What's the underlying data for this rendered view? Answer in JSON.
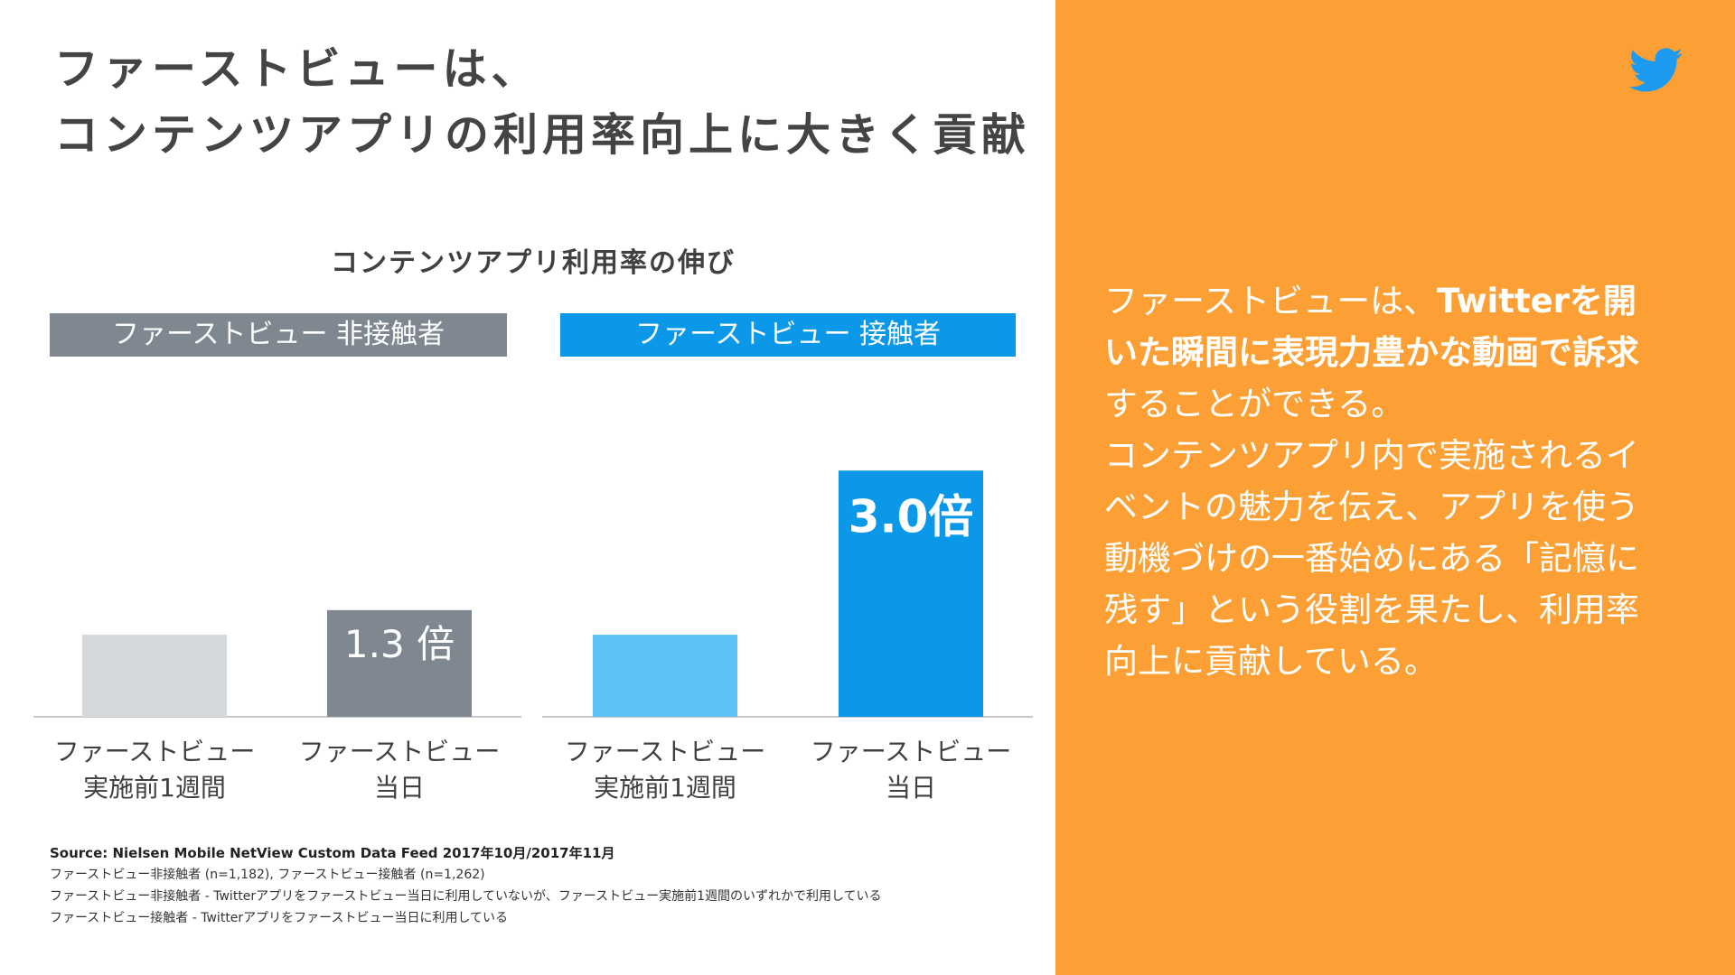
{
  "title": {
    "line1": "ファーストビューは、",
    "line2": "コンテンツアプリの利用率向上に大きく貢献"
  },
  "colors": {
    "panel_bg": "#fca035",
    "twitter_blue": "#1d9bf0",
    "gray_dark": "#7f8891",
    "gray_light": "#d3d8dc",
    "blue_dark": "#0b98e8",
    "blue_light": "#5cc3f4"
  },
  "chart_data": {
    "type": "bar",
    "title": "コンテンツアプリ利用率の伸び",
    "groups": [
      "ファーストビュー 非接触者",
      "ファーストビュー 接触者"
    ],
    "categories": [
      "ファーストビュー 実施前1週間",
      "ファーストビュー 当日",
      "ファーストビュー 実施前1週間",
      "ファーストビュー 当日"
    ],
    "category_lines": [
      [
        "ファーストビュー",
        "実施前1週間"
      ],
      [
        "ファーストビュー",
        "当日"
      ],
      [
        "ファーストビュー",
        "実施前1週間"
      ],
      [
        "ファーストビュー",
        "当日"
      ]
    ],
    "values": [
      1.0,
      1.3,
      1.0,
      3.0
    ],
    "data_labels": [
      "",
      "1.3 倍",
      "",
      "3.0倍"
    ],
    "colors": [
      "#d3d8dc",
      "#7f8891",
      "#5cc3f4",
      "#0b98e8"
    ],
    "ylim": [
      0,
      3.3
    ],
    "grid": false
  },
  "footnotes": {
    "source": "Source: Nielsen Mobile NetView Custom Data Feed 2017年10月/2017年11月",
    "line1": "ファーストビュー非接触者 (n=1,182), ファーストビュー接触者 (n=1,262)",
    "line2": "ファーストビュー非接触者 - Twitterアプリをファーストビュー当日に利用していないが、ファーストビュー実施前1週間のいずれかで利用している",
    "line3": "ファーストビュー接触者 - Twitterアプリをファーストビュー当日に利用している"
  },
  "panel": {
    "icon": "twitter-bird-icon",
    "p1_normal": "ファーストビューは、",
    "p1_bold_a": "Twitterを開",
    "p1_bold_b": "いた瞬間に表現力豊かな動画で訴求",
    "p1_end": "することができる。",
    "p2_l1": "コンテンツアプリ内で実施されるイ",
    "p2_l2": "ベントの魅力を伝え、アプリを使う",
    "p2_l3": "動機づけの一番始めにある「記憶に",
    "p2_l4": "残す」という役割を果たし、利用率",
    "p2_l5": "向上に貢献している。"
  }
}
